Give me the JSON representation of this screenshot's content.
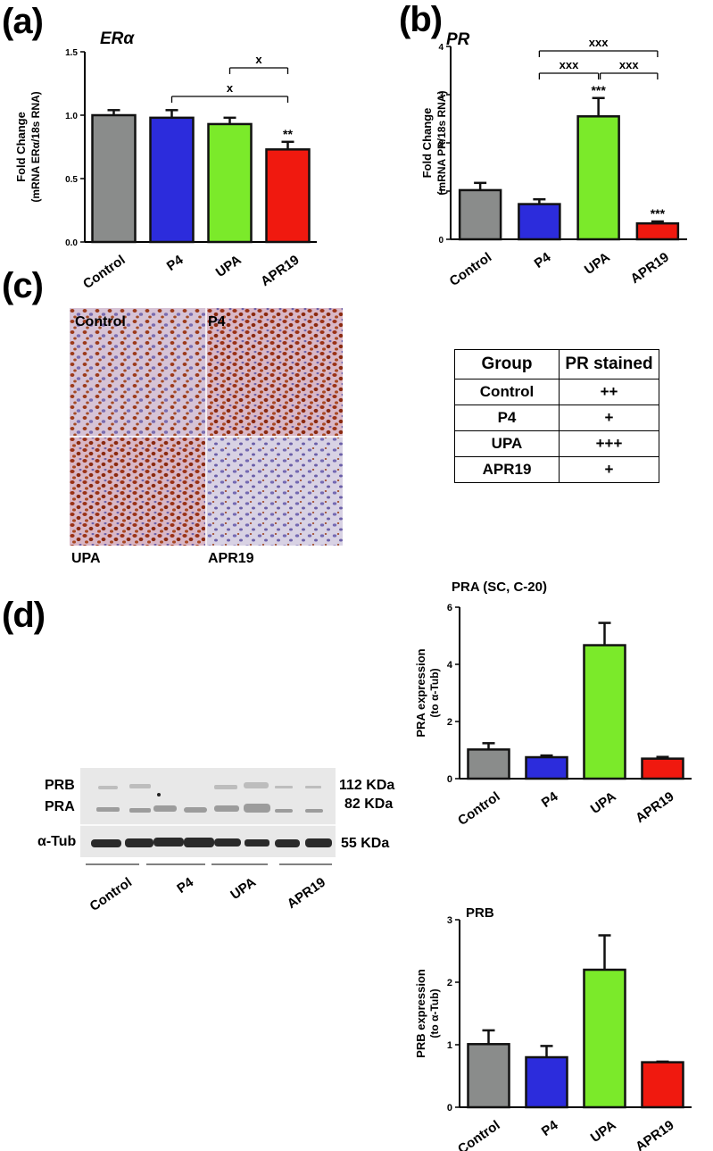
{
  "panels": {
    "a": "(a)",
    "b": "(b)",
    "c": "(c)",
    "d": "(d)"
  },
  "colors": {
    "Control": "#8a8c8b",
    "P4": "#2c2cdc",
    "UPA": "#7bea2a",
    "APR19": "#f0190f"
  },
  "chart_data": [
    {
      "id": "a",
      "type": "bar",
      "title": "ERα",
      "title_parts": [
        "ER",
        "α"
      ],
      "ylabel_lines": [
        "Fold Change",
        "(mRNA ERα/18s RNA)"
      ],
      "categories": [
        "Control",
        "P4",
        "UPA",
        "APR19"
      ],
      "values": [
        1.0,
        0.98,
        0.93,
        0.73
      ],
      "errors": [
        0.04,
        0.06,
        0.05,
        0.06
      ],
      "ylim": [
        0,
        1.5
      ],
      "yticks": [
        "0.0",
        "0.5",
        "1.0",
        "1.5"
      ],
      "annotations": [
        "",
        "",
        "",
        "**"
      ],
      "brackets": [
        {
          "from": 2,
          "to": 3,
          "label": "x",
          "level": 1
        },
        {
          "from": 1,
          "to": 3,
          "label": "x",
          "level": 0
        }
      ]
    },
    {
      "id": "b",
      "type": "bar",
      "title": "PR",
      "ylabel_lines": [
        "Fold Change",
        "(mRNA PR/18s RNA)"
      ],
      "categories": [
        "Control",
        "P4",
        "UPA",
        "APR19"
      ],
      "values": [
        1.02,
        0.73,
        2.55,
        0.33
      ],
      "errors": [
        0.15,
        0.1,
        0.38,
        0.04
      ],
      "ylim": [
        0,
        4
      ],
      "yticks": [
        "0",
        "1",
        "2",
        "3",
        "4"
      ],
      "annotations": [
        "",
        "",
        "***",
        "***"
      ],
      "brackets": [
        {
          "from": 1,
          "to": 3,
          "label": "xxx",
          "level": 1
        },
        {
          "from": 1,
          "to": 2,
          "label": "xxx",
          "level": 0
        },
        {
          "from": 2,
          "to": 3,
          "label": "xxx",
          "level": 0
        }
      ]
    },
    {
      "id": "d1",
      "type": "bar",
      "title": "PRA (SC, C-20)",
      "ylabel_lines": [
        "PRA expression",
        "(to α-Tub)"
      ],
      "categories": [
        "Control",
        "P4",
        "UPA",
        "APR19"
      ],
      "values": [
        1.02,
        0.75,
        4.67,
        0.7
      ],
      "errors": [
        0.22,
        0.06,
        0.78,
        0.06
      ],
      "ylim": [
        0,
        6
      ],
      "yticks": [
        "0",
        "2",
        "4",
        "6"
      ]
    },
    {
      "id": "d2",
      "type": "bar",
      "title": "PRB",
      "ylabel_lines": [
        "PRB expression",
        "(to α-Tub)"
      ],
      "categories": [
        "Control",
        "P4",
        "UPA",
        "APR19"
      ],
      "values": [
        1.01,
        0.8,
        2.2,
        0.72
      ],
      "errors": [
        0.22,
        0.18,
        0.55,
        0.01
      ],
      "ylim": [
        0,
        3
      ],
      "yticks": [
        "0",
        "1",
        "2",
        "3"
      ]
    }
  ],
  "micrographs": {
    "labels": [
      "Control",
      "P4",
      "UPA",
      "APR19"
    ]
  },
  "pr_table": {
    "headers": [
      "Group",
      "PR stained"
    ],
    "rows": [
      [
        "Control",
        "++"
      ],
      [
        "P4",
        "+"
      ],
      [
        "UPA",
        "+++"
      ],
      [
        "APR19",
        "+"
      ]
    ]
  },
  "western": {
    "left_labels": [
      "PRB",
      "PRA",
      "α-Tub"
    ],
    "right_labels": [
      "112 KDa",
      "82 KDa",
      "55 KDa"
    ],
    "groups": [
      "Control",
      "P4",
      "UPA",
      "APR19"
    ]
  }
}
